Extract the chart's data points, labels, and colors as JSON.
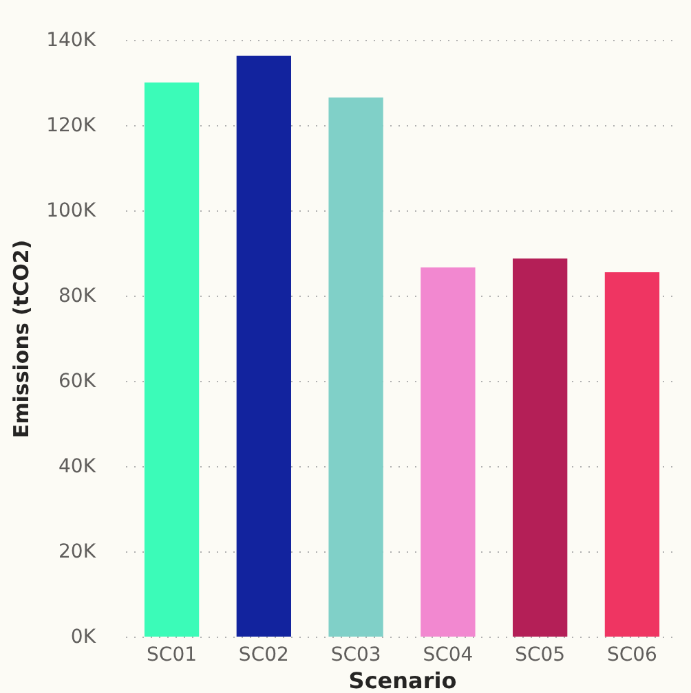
{
  "chart_data": {
    "type": "bar",
    "xlabel": "Scenario",
    "ylabel": "Emissions (tCO2)",
    "categories": [
      "SC01",
      "SC02",
      "SC03",
      "SC04",
      "SC05",
      "SC06"
    ],
    "values": [
      130000,
      136300,
      126500,
      86600,
      88700,
      85500
    ],
    "colors": [
      "#3bfbb8",
      "#12239e",
      "#80d0c8",
      "#f288d0",
      "#b41f57",
      "#ef3562"
    ],
    "ylim": [
      0,
      140000
    ],
    "yticks": [
      {
        "value": 0,
        "label": "0K"
      },
      {
        "value": 20000,
        "label": "20K"
      },
      {
        "value": 40000,
        "label": "40K"
      },
      {
        "value": 60000,
        "label": "60K"
      },
      {
        "value": 80000,
        "label": "80K"
      },
      {
        "value": 100000,
        "label": "100K"
      },
      {
        "value": 120000,
        "label": "120K"
      },
      {
        "value": 140000,
        "label": "140K"
      }
    ],
    "grid": "y"
  }
}
